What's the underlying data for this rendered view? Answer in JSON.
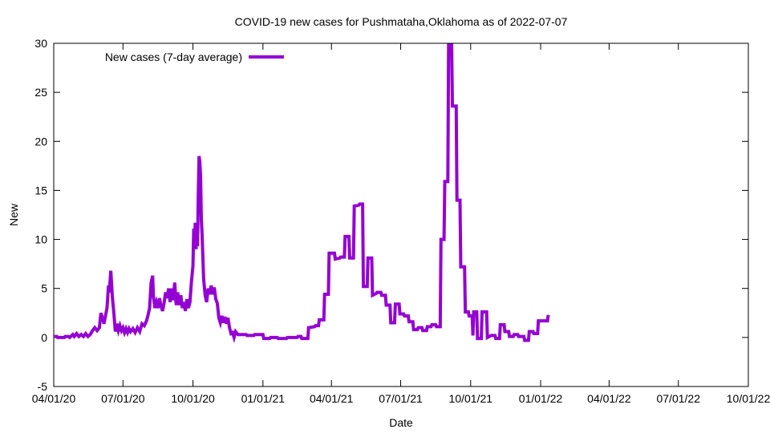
{
  "chart_data": {
    "type": "line",
    "title": "COVID-19 new cases for Pushmataha,Oklahoma as of 2022-07-07",
    "xlabel": "Date",
    "ylabel": "New",
    "xlim": [
      "2020-04-01",
      "2022-10-01"
    ],
    "ylim": [
      -5,
      30
    ],
    "yticks": [
      -5,
      0,
      5,
      10,
      15,
      20,
      25,
      30
    ],
    "xticks": [
      {
        "date": "2020-04-01",
        "label": "04/01/20"
      },
      {
        "date": "2020-07-01",
        "label": "07/01/20"
      },
      {
        "date": "2020-10-01",
        "label": "10/01/20"
      },
      {
        "date": "2021-01-01",
        "label": "01/01/21"
      },
      {
        "date": "2021-04-01",
        "label": "04/01/21"
      },
      {
        "date": "2021-07-01",
        "label": "07/01/21"
      },
      {
        "date": "2021-10-01",
        "label": "10/01/21"
      },
      {
        "date": "2022-01-01",
        "label": "01/01/22"
      },
      {
        "date": "2022-04-01",
        "label": "04/01/22"
      },
      {
        "date": "2022-07-01",
        "label": "07/01/22"
      },
      {
        "date": "2022-10-01",
        "label": "10/01/22"
      }
    ],
    "grid": false,
    "legend_position": "top-left",
    "series": [
      {
        "name": "New cases (7-day average)",
        "color": "#9400d3",
        "points": [
          [
            "2020-04-01",
            0.1
          ],
          [
            "2020-04-05",
            0.1
          ],
          [
            "2020-04-06",
            0
          ],
          [
            "2020-04-15",
            0
          ],
          [
            "2020-04-16",
            0.1
          ],
          [
            "2020-04-20",
            0.1
          ],
          [
            "2020-04-22",
            0
          ],
          [
            "2020-04-26",
            0.3
          ],
          [
            "2020-04-28",
            0.1
          ],
          [
            "2020-05-01",
            0.4
          ],
          [
            "2020-05-04",
            0.1
          ],
          [
            "2020-05-07",
            0.3
          ],
          [
            "2020-05-10",
            0.1
          ],
          [
            "2020-05-13",
            0.4
          ],
          [
            "2020-05-16",
            0.1
          ],
          [
            "2020-05-19",
            0.3
          ],
          [
            "2020-05-22",
            0.7
          ],
          [
            "2020-05-25",
            1.0
          ],
          [
            "2020-05-28",
            0.7
          ],
          [
            "2020-05-31",
            1.0
          ],
          [
            "2020-06-02",
            2.5
          ],
          [
            "2020-06-04",
            2.0
          ],
          [
            "2020-06-06",
            1.4
          ],
          [
            "2020-06-08",
            2.2
          ],
          [
            "2020-06-10",
            3.0
          ],
          [
            "2020-06-12",
            5.3
          ],
          [
            "2020-06-13",
            4.6
          ],
          [
            "2020-06-15",
            6.8
          ],
          [
            "2020-06-17",
            4.2
          ],
          [
            "2020-06-19",
            2.5
          ],
          [
            "2020-06-21",
            0.6
          ],
          [
            "2020-06-23",
            1.4
          ],
          [
            "2020-06-25",
            0.7
          ],
          [
            "2020-06-27",
            1.2
          ],
          [
            "2020-06-29",
            0.7
          ],
          [
            "2020-07-01",
            1.0
          ],
          [
            "2020-07-03",
            0.5
          ],
          [
            "2020-07-05",
            0.9
          ],
          [
            "2020-07-07",
            0.5
          ],
          [
            "2020-07-09",
            0.9
          ],
          [
            "2020-07-11",
            0.6
          ],
          [
            "2020-07-14",
            0.9
          ],
          [
            "2020-07-17",
            0.5
          ],
          [
            "2020-07-20",
            1.0
          ],
          [
            "2020-07-23",
            0.6
          ],
          [
            "2020-07-26",
            1.4
          ],
          [
            "2020-07-29",
            1.2
          ],
          [
            "2020-08-01",
            1.7
          ],
          [
            "2020-08-03",
            2.3
          ],
          [
            "2020-08-05",
            3.0
          ],
          [
            "2020-08-07",
            5.6
          ],
          [
            "2020-08-09",
            6.3
          ],
          [
            "2020-08-10",
            4.2
          ],
          [
            "2020-08-12",
            3.0
          ],
          [
            "2020-08-14",
            3.6
          ],
          [
            "2020-08-16",
            3.0
          ],
          [
            "2020-08-18",
            4.0
          ],
          [
            "2020-08-20",
            3.2
          ],
          [
            "2020-08-22",
            2.7
          ],
          [
            "2020-08-24",
            3.5
          ],
          [
            "2020-08-26",
            4.6
          ],
          [
            "2020-08-28",
            4.0
          ],
          [
            "2020-08-30",
            5.0
          ],
          [
            "2020-09-01",
            3.6
          ],
          [
            "2020-09-03",
            5.0
          ],
          [
            "2020-09-05",
            3.8
          ],
          [
            "2020-09-07",
            5.6
          ],
          [
            "2020-09-09",
            3.3
          ],
          [
            "2020-09-11",
            4.6
          ],
          [
            "2020-09-13",
            3.3
          ],
          [
            "2020-09-15",
            4.3
          ],
          [
            "2020-09-17",
            3.0
          ],
          [
            "2020-09-19",
            3.6
          ],
          [
            "2020-09-21",
            2.7
          ],
          [
            "2020-09-23",
            3.9
          ],
          [
            "2020-09-25",
            3.0
          ],
          [
            "2020-09-27",
            3.6
          ],
          [
            "2020-09-29",
            5.7
          ],
          [
            "2020-10-01",
            7.3
          ],
          [
            "2020-10-02",
            11.1
          ],
          [
            "2020-10-03",
            9.2
          ],
          [
            "2020-10-04",
            11.7
          ],
          [
            "2020-10-05",
            9.0
          ],
          [
            "2020-10-06",
            11.2
          ],
          [
            "2020-10-07",
            9.3
          ],
          [
            "2020-10-08",
            14.6
          ],
          [
            "2020-10-09",
            18.5
          ],
          [
            "2020-10-10",
            17.9
          ],
          [
            "2020-10-11",
            16.5
          ],
          [
            "2020-10-12",
            12.0
          ],
          [
            "2020-10-13",
            10.5
          ],
          [
            "2020-10-15",
            6.0
          ],
          [
            "2020-10-17",
            4.3
          ],
          [
            "2020-10-19",
            3.6
          ],
          [
            "2020-10-21",
            5.0
          ],
          [
            "2020-10-23",
            4.4
          ],
          [
            "2020-10-25",
            5.3
          ],
          [
            "2020-10-27",
            4.4
          ],
          [
            "2020-10-29",
            5.1
          ],
          [
            "2020-10-31",
            3.9
          ],
          [
            "2020-11-02",
            3.5
          ],
          [
            "2020-11-04",
            2.0
          ],
          [
            "2020-11-06",
            1.5
          ],
          [
            "2020-11-08",
            2.2
          ],
          [
            "2020-11-10",
            1.5
          ],
          [
            "2020-11-12",
            2.1
          ],
          [
            "2020-11-14",
            1.4
          ],
          [
            "2020-11-16",
            2.0
          ],
          [
            "2020-11-18",
            1.0
          ],
          [
            "2020-11-20",
            0.4
          ],
          [
            "2020-11-22",
            0.5
          ],
          [
            "2020-11-24",
            0
          ],
          [
            "2020-11-26",
            0.6
          ],
          [
            "2020-11-29",
            0.3
          ],
          [
            "2020-12-10",
            0.3
          ],
          [
            "2020-12-11",
            0.2
          ],
          [
            "2020-12-20",
            0.2
          ],
          [
            "2020-12-21",
            0.3
          ],
          [
            "2021-01-01",
            0.3
          ],
          [
            "2021-01-02",
            -0.1
          ],
          [
            "2021-01-10",
            -0.1
          ],
          [
            "2021-01-11",
            0
          ],
          [
            "2021-01-20",
            0
          ],
          [
            "2021-01-21",
            -0.1
          ],
          [
            "2021-02-01",
            -0.1
          ],
          [
            "2021-02-02",
            0
          ],
          [
            "2021-02-15",
            0
          ],
          [
            "2021-02-16",
            0.1
          ],
          [
            "2021-02-20",
            0.1
          ],
          [
            "2021-02-21",
            -0.1
          ],
          [
            "2021-03-01",
            -0.1
          ],
          [
            "2021-03-02",
            1.0
          ],
          [
            "2021-03-10",
            1.1
          ],
          [
            "2021-03-11",
            1.2
          ],
          [
            "2021-03-15",
            1.2
          ],
          [
            "2021-03-16",
            1.8
          ],
          [
            "2021-03-22",
            1.8
          ],
          [
            "2021-03-23",
            4.4
          ],
          [
            "2021-03-28",
            4.4
          ],
          [
            "2021-03-29",
            8.6
          ],
          [
            "2021-04-05",
            8.6
          ],
          [
            "2021-04-06",
            8.0
          ],
          [
            "2021-04-12",
            8.1
          ],
          [
            "2021-04-13",
            8.2
          ],
          [
            "2021-04-18",
            8.2
          ],
          [
            "2021-04-19",
            10.3
          ],
          [
            "2021-04-24",
            10.3
          ],
          [
            "2021-04-25",
            8.1
          ],
          [
            "2021-04-30",
            8.1
          ],
          [
            "2021-05-01",
            13.4
          ],
          [
            "2021-05-07",
            13.5
          ],
          [
            "2021-05-08",
            13.6
          ],
          [
            "2021-05-12",
            13.6
          ],
          [
            "2021-05-13",
            5.2
          ],
          [
            "2021-05-18",
            5.2
          ],
          [
            "2021-05-19",
            8.1
          ],
          [
            "2021-05-24",
            8.1
          ],
          [
            "2021-05-25",
            4.3
          ],
          [
            "2021-05-30",
            4.5
          ],
          [
            "2021-05-31",
            4.6
          ],
          [
            "2021-06-05",
            4.6
          ],
          [
            "2021-06-06",
            4.3
          ],
          [
            "2021-06-11",
            4.3
          ],
          [
            "2021-06-12",
            3.3
          ],
          [
            "2021-06-17",
            3.3
          ],
          [
            "2021-06-18",
            1.5
          ],
          [
            "2021-06-23",
            1.5
          ],
          [
            "2021-06-24",
            3.4
          ],
          [
            "2021-06-29",
            3.4
          ],
          [
            "2021-06-30",
            2.4
          ],
          [
            "2021-07-05",
            2.4
          ],
          [
            "2021-07-06",
            2.2
          ],
          [
            "2021-07-11",
            2.2
          ],
          [
            "2021-07-12",
            1.6
          ],
          [
            "2021-07-17",
            1.6
          ],
          [
            "2021-07-18",
            0.8
          ],
          [
            "2021-07-23",
            0.8
          ],
          [
            "2021-07-24",
            1.0
          ],
          [
            "2021-07-29",
            1.0
          ],
          [
            "2021-07-30",
            0.7
          ],
          [
            "2021-08-04",
            0.7
          ],
          [
            "2021-08-05",
            1.1
          ],
          [
            "2021-08-10",
            1.1
          ],
          [
            "2021-08-11",
            1.3
          ],
          [
            "2021-08-16",
            1.3
          ],
          [
            "2021-08-17",
            1.1
          ],
          [
            "2021-08-22",
            1.1
          ],
          [
            "2021-08-23",
            10.0
          ],
          [
            "2021-08-27",
            10.0
          ],
          [
            "2021-08-28",
            15.9
          ],
          [
            "2021-09-01",
            15.9
          ],
          [
            "2021-09-02",
            29.8
          ],
          [
            "2021-09-06",
            29.8
          ],
          [
            "2021-09-07",
            23.6
          ],
          [
            "2021-09-12",
            23.6
          ],
          [
            "2021-09-13",
            14.0
          ],
          [
            "2021-09-17",
            14.0
          ],
          [
            "2021-09-18",
            7.2
          ],
          [
            "2021-09-23",
            7.2
          ],
          [
            "2021-09-24",
            2.6
          ],
          [
            "2021-09-28",
            2.6
          ],
          [
            "2021-09-29",
            2.2
          ],
          [
            "2021-10-03",
            2.2
          ],
          [
            "2021-10-04",
            0.2
          ],
          [
            "2021-10-05",
            2.6
          ],
          [
            "2021-10-09",
            2.6
          ],
          [
            "2021-10-10",
            -0.1
          ],
          [
            "2021-10-15",
            -0.1
          ],
          [
            "2021-10-16",
            2.6
          ],
          [
            "2021-10-22",
            2.6
          ],
          [
            "2021-10-23",
            0
          ],
          [
            "2021-10-28",
            0.2
          ],
          [
            "2021-11-02",
            0.2
          ],
          [
            "2021-11-03",
            -0.1
          ],
          [
            "2021-11-08",
            -0.1
          ],
          [
            "2021-11-09",
            1.3
          ],
          [
            "2021-11-14",
            1.3
          ],
          [
            "2021-11-15",
            0.6
          ],
          [
            "2021-11-20",
            0.6
          ],
          [
            "2021-11-21",
            0.1
          ],
          [
            "2021-11-26",
            0.1
          ],
          [
            "2021-11-27",
            0.3
          ],
          [
            "2021-12-02",
            0.3
          ],
          [
            "2021-12-03",
            0.1
          ],
          [
            "2021-12-10",
            0.1
          ],
          [
            "2021-12-11",
            -0.3
          ],
          [
            "2021-12-16",
            -0.3
          ],
          [
            "2021-12-17",
            0.6
          ],
          [
            "2021-12-22",
            0.6
          ],
          [
            "2021-12-23",
            0.4
          ],
          [
            "2021-12-28",
            0.4
          ],
          [
            "2021-12-29",
            1.7
          ],
          [
            "2022-01-10",
            1.7
          ],
          [
            "2022-01-11",
            2.3
          ]
        ]
      }
    ]
  }
}
